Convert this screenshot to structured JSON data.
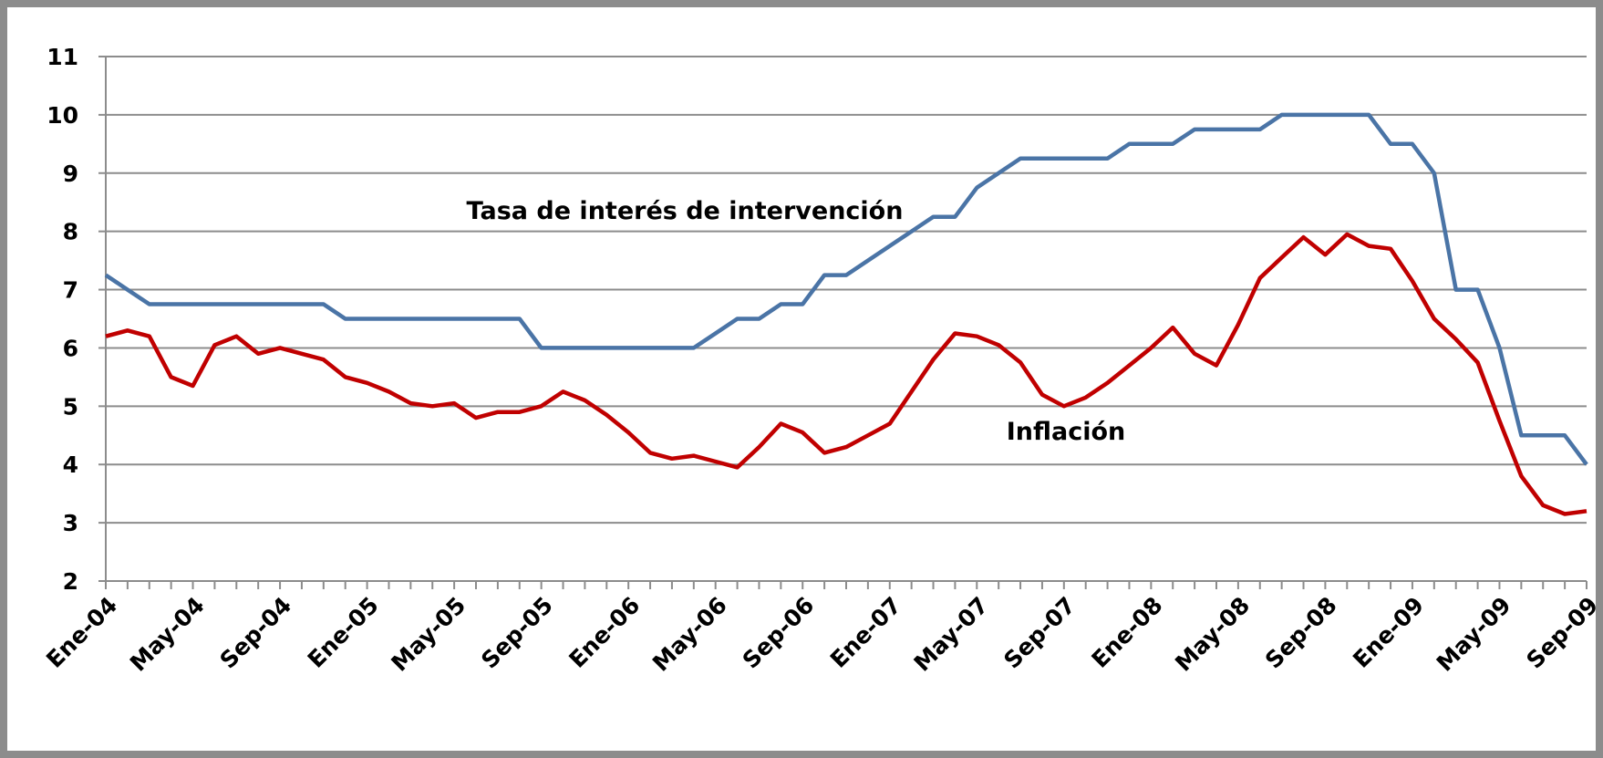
{
  "chart_data": {
    "type": "line",
    "categories": [
      "Ene-04",
      null,
      null,
      null,
      "May-04",
      null,
      null,
      null,
      "Sep-04",
      null,
      null,
      null,
      "Ene-05",
      null,
      null,
      null,
      "May-05",
      null,
      null,
      null,
      "Sep-05",
      null,
      null,
      null,
      "Ene-06",
      null,
      null,
      null,
      "May-06",
      null,
      null,
      null,
      "Sep-06",
      null,
      null,
      null,
      "Ene-07",
      null,
      null,
      null,
      "May-07",
      null,
      null,
      null,
      "Sep-07",
      null,
      null,
      null,
      "Ene-08",
      null,
      null,
      null,
      "May-08",
      null,
      null,
      null,
      "Sep-08",
      null,
      null,
      null,
      "Ene-09",
      null,
      null,
      null,
      "May-09",
      null,
      null,
      null,
      "Sep-09"
    ],
    "series": [
      {
        "name": "Tasa de interés de intervención",
        "color": "#4a74a6",
        "values": [
          7.25,
          7.0,
          6.75,
          6.75,
          6.75,
          6.75,
          6.75,
          6.75,
          6.75,
          6.75,
          6.75,
          6.5,
          6.5,
          6.5,
          6.5,
          6.5,
          6.5,
          6.5,
          6.5,
          6.5,
          6.0,
          6.0,
          6.0,
          6.0,
          6.0,
          6.0,
          6.0,
          6.0,
          6.25,
          6.5,
          6.5,
          6.75,
          6.75,
          7.25,
          7.25,
          7.5,
          7.75,
          8.0,
          8.25,
          8.25,
          8.75,
          9.0,
          9.25,
          9.25,
          9.25,
          9.25,
          9.25,
          9.5,
          9.5,
          9.5,
          9.75,
          9.75,
          9.75,
          9.75,
          10.0,
          10.0,
          10.0,
          10.0,
          10.0,
          9.5,
          9.5,
          9.0,
          7.0,
          7.0,
          6.0,
          4.5,
          4.5,
          4.5,
          4.0
        ]
      },
      {
        "name": "Inflación",
        "color": "#c00000",
        "values": [
          6.2,
          6.3,
          6.2,
          5.5,
          5.35,
          6.05,
          6.2,
          5.9,
          6.0,
          5.9,
          5.8,
          5.5,
          5.4,
          5.25,
          5.05,
          5.0,
          5.05,
          4.8,
          4.9,
          4.9,
          5.0,
          5.25,
          5.1,
          4.85,
          4.55,
          4.2,
          4.1,
          4.15,
          4.05,
          3.95,
          4.3,
          4.7,
          4.55,
          4.2,
          4.3,
          4.5,
          4.7,
          5.25,
          5.8,
          6.25,
          6.2,
          6.05,
          5.75,
          5.2,
          5.0,
          5.15,
          5.4,
          5.7,
          6.0,
          6.35,
          5.9,
          5.7,
          6.4,
          7.2,
          7.55,
          7.9,
          7.6,
          7.95,
          7.75,
          7.7,
          7.15,
          6.5,
          6.15,
          5.75,
          4.75,
          3.8,
          3.3,
          3.15,
          3.2
        ]
      }
    ],
    "ylim": [
      2,
      11
    ],
    "yticks": [
      2,
      3,
      4,
      5,
      6,
      7,
      8,
      9,
      10,
      11
    ],
    "grid": true
  }
}
